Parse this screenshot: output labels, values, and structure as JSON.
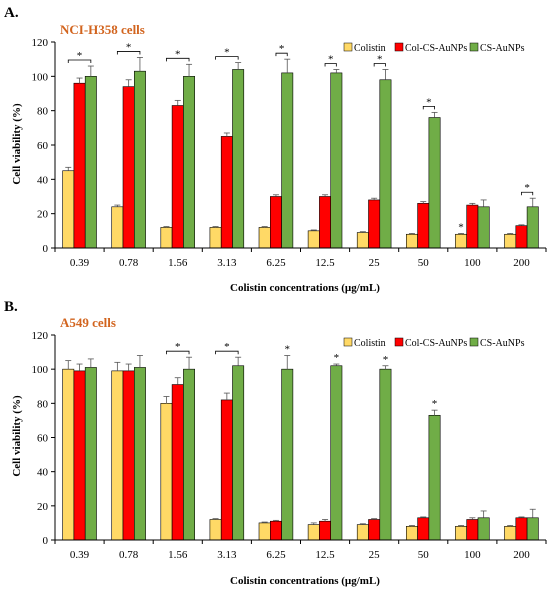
{
  "colors": {
    "colistin": "#ffd966",
    "col_cs_aunps": "#ff0000",
    "cs_aunps": "#70ad47"
  },
  "chart_data": [
    {
      "type": "bar",
      "panel_label": "A.",
      "title": "NCI-H358 cells",
      "xlabel": "Colistin concentrations (µg/mL)",
      "ylabel": "Cell viability (%)",
      "ylim": [
        0,
        120
      ],
      "yticks": [
        "0",
        "20",
        "40",
        "60",
        "80",
        "100",
        "120"
      ],
      "categories": [
        "0.39",
        "0.78",
        "1.56",
        "3.13",
        "6.25",
        "12.5",
        "25",
        "50",
        "100",
        "200"
      ],
      "legend": [
        "Colistin",
        "Col-CS-AuNPs",
        "CS-AuNPs"
      ],
      "series": [
        {
          "name": "Colistin",
          "values": [
            45,
            24,
            12,
            12,
            12,
            10,
            9,
            8,
            8,
            8
          ],
          "errors": [
            2,
            1,
            0.5,
            0.5,
            0.5,
            0.5,
            0.5,
            0.5,
            0.5,
            0.5
          ]
        },
        {
          "name": "Col-CS-AuNPs",
          "values": [
            96,
            94,
            83,
            65,
            30,
            30,
            28,
            26,
            25,
            13
          ],
          "errors": [
            3,
            4,
            3,
            2,
            1,
            1,
            1,
            1,
            1,
            0.5
          ]
        },
        {
          "name": "CS-AuNPs",
          "values": [
            100,
            103,
            100,
            104,
            102,
            102,
            98,
            76,
            24,
            24
          ],
          "errors": [
            6,
            8,
            7,
            4,
            8,
            2,
            6,
            3,
            4,
            5
          ]
        }
      ],
      "significance": [
        {
          "category_index": 0,
          "marker": "*",
          "spans": "Colistin–CS-AuNPs"
        },
        {
          "category_index": 1,
          "marker": "*",
          "spans": "Colistin–CS-AuNPs"
        },
        {
          "category_index": 2,
          "marker": "*",
          "spans": "Colistin–CS-AuNPs"
        },
        {
          "category_index": 3,
          "marker": "*",
          "spans": "Colistin–CS-AuNPs"
        },
        {
          "category_index": 4,
          "marker": "*",
          "spans": "Col-CS-AuNPs–CS-AuNPs"
        },
        {
          "category_index": 5,
          "marker": "*",
          "spans": "Col-CS-AuNPs–CS-AuNPs"
        },
        {
          "category_index": 6,
          "marker": "*",
          "spans": "Col-CS-AuNPs–CS-AuNPs"
        },
        {
          "category_index": 7,
          "marker": "*",
          "spans": "Col-CS-AuNPs–CS-AuNPs"
        },
        {
          "category_index": 8,
          "marker": "*",
          "spans": "Colistin"
        },
        {
          "category_index": 9,
          "marker": "*",
          "spans": "Col-CS-AuNPs–CS-AuNPs"
        }
      ]
    },
    {
      "type": "bar",
      "panel_label": "B.",
      "title": "A549 cells",
      "xlabel": "Colistin concentrations (µg/mL)",
      "ylabel": "Cell viability (%)",
      "ylim": [
        0,
        120
      ],
      "yticks": [
        "0",
        "20",
        "40",
        "60",
        "80",
        "100",
        "120"
      ],
      "categories": [
        "0.39",
        "0.78",
        "1.56",
        "3.13",
        "6.25",
        "12.5",
        "25",
        "50",
        "100",
        "200"
      ],
      "legend": [
        "Colistin",
        "Col-CS-AuNPs",
        "CS-AuNPs"
      ],
      "series": [
        {
          "name": "Colistin",
          "values": [
            100,
            99,
            80,
            12,
            10,
            9,
            9,
            8,
            8,
            8
          ],
          "errors": [
            5,
            5,
            4,
            0.5,
            0.5,
            1,
            0.5,
            0.5,
            0.5,
            0.5
          ]
        },
        {
          "name": "Col-CS-AuNPs",
          "values": [
            99,
            99,
            91,
            82,
            11,
            11,
            12,
            13,
            12,
            13
          ],
          "errors": [
            4,
            4,
            4,
            4,
            0.5,
            1,
            0.5,
            0.5,
            1,
            0.5
          ]
        },
        {
          "name": "CS-AuNPs",
          "values": [
            101,
            101,
            100,
            102,
            100,
            102,
            100,
            73,
            13,
            13
          ],
          "errors": [
            5,
            7,
            7,
            5,
            8,
            1,
            2,
            3,
            4,
            5
          ]
        }
      ],
      "significance": [
        {
          "category_index": 2,
          "marker": "*",
          "spans": "Colistin–CS-AuNPs"
        },
        {
          "category_index": 3,
          "marker": "*",
          "spans": "Colistin–CS-AuNPs"
        },
        {
          "category_index": 4,
          "marker": "*",
          "spans": "CS-AuNPs"
        },
        {
          "category_index": 5,
          "marker": "*",
          "spans": "CS-AuNPs"
        },
        {
          "category_index": 6,
          "marker": "*",
          "spans": "CS-AuNPs"
        },
        {
          "category_index": 7,
          "marker": "*",
          "spans": "CS-AuNPs"
        }
      ]
    }
  ]
}
